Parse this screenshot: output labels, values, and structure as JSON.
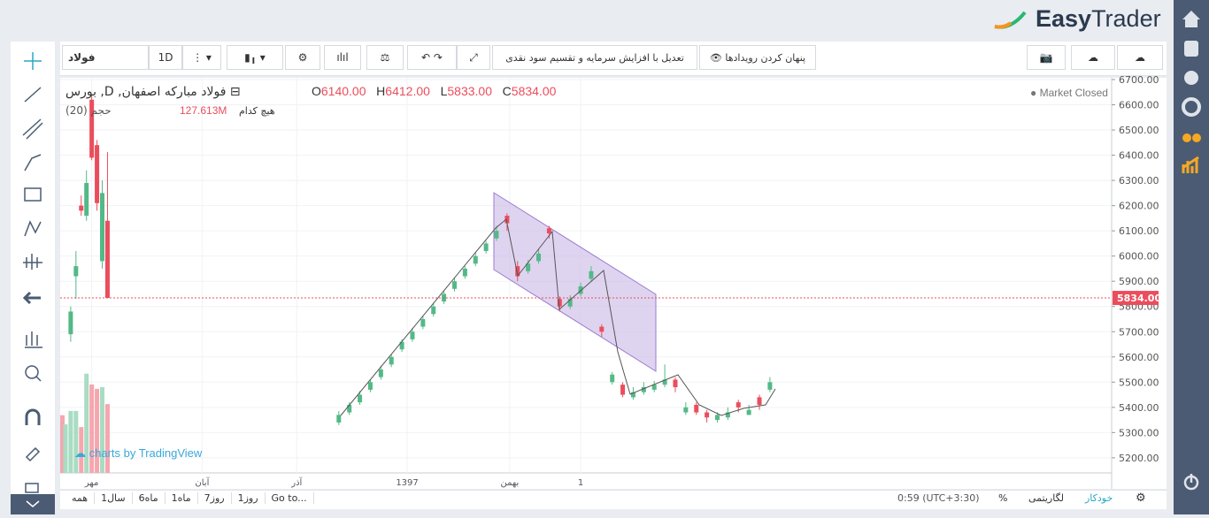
{
  "header": {
    "logo_easy": "Easy",
    "logo_trader": "Trader"
  },
  "toolbar": {
    "symbol": "فولاد",
    "interval": "1D",
    "adjust": "تعدیل با افزایش سرمایه و تقسیم سود نقدی",
    "hide_events": "پنهان کردن رویدادها"
  },
  "legend": {
    "title": "فولاد مبارکه اصفهان, D, بورس",
    "o_label": "O",
    "o": "6140.00",
    "h_label": "H",
    "h": "6412.00",
    "l_label": "L",
    "l": "5833.00",
    "c_label": "C",
    "c": "5834.00",
    "status": "Market Closed",
    "volume_title": "(حجم (20",
    "volume_value": "127.613M",
    "volume_ma": "هیچ کدام"
  },
  "watermark": "charts by TradingView",
  "chart_data": {
    "type": "candlestick",
    "xlim": [
      0,
      200
    ],
    "ylim": [
      5140,
      6707
    ],
    "yticks": [
      {
        "value": 5200,
        "label": "5200.00"
      },
      {
        "value": 5300,
        "label": "5300.00"
      },
      {
        "value": 5400,
        "label": "5400.00"
      },
      {
        "value": 5500,
        "label": "5500.00"
      },
      {
        "value": 5600,
        "label": "5600.00"
      },
      {
        "value": 5700,
        "label": "5700.00"
      },
      {
        "value": 5800,
        "label": "5800.00"
      },
      {
        "value": 5900,
        "label": "5900.00"
      },
      {
        "value": 6000,
        "label": "6000.00"
      },
      {
        "value": 6100,
        "label": "6100.00"
      },
      {
        "value": 6200,
        "label": "6200.00"
      },
      {
        "value": 6300,
        "label": "6300.00"
      },
      {
        "value": 6400,
        "label": "6400.00"
      },
      {
        "value": 6500,
        "label": "6500.00"
      },
      {
        "value": 6600,
        "label": "6600.00"
      },
      {
        "value": 6700,
        "label": "6700.00"
      }
    ],
    "xticks": [
      {
        "value": 6,
        "label": "مهر"
      },
      {
        "value": 27,
        "label": "آبان"
      },
      {
        "value": 45,
        "label": "آذر"
      },
      {
        "value": 66,
        "label": "1397"
      },
      {
        "value": 85.5,
        "label": "بهمن"
      },
      {
        "value": 99,
        "label": "1"
      }
    ],
    "grid": true,
    "up_color": "#53b987",
    "down_color": "#eb4d5c",
    "last": {
      "value": 5834,
      "label": "5834.00"
    },
    "x": [
      2,
      3,
      4,
      5,
      6,
      7,
      8,
      9,
      53,
      55,
      57,
      59,
      61,
      63,
      65,
      67,
      69,
      71,
      73,
      75,
      77,
      79,
      81,
      83,
      85,
      87,
      89,
      91,
      93,
      95,
      97,
      99,
      101,
      103,
      105,
      107,
      109,
      111,
      113,
      115,
      117,
      119,
      121,
      123,
      125,
      127,
      129,
      131,
      133,
      135
    ],
    "open": [
      5690,
      5920,
      6200,
      6160,
      6620,
      6440,
      5980,
      6140,
      5340,
      5380,
      5420,
      5470,
      5520,
      5570,
      5630,
      5670,
      5720,
      5770,
      5820,
      5870,
      5920,
      5970,
      6020,
      6070,
      6160,
      5960,
      5940,
      5980,
      6110,
      5830,
      5800,
      5850,
      5910,
      5720,
      5500,
      5490,
      5440,
      5460,
      5470,
      5490,
      5510,
      5380,
      5410,
      5380,
      5350,
      5360,
      5420,
      5370,
      5440,
      5470
    ],
    "high": [
      5800,
      6020,
      6240,
      6340,
      6640,
      6460,
      6300,
      6412,
      5385,
      5420,
      5465,
      5510,
      5565,
      5610,
      5670,
      5715,
      5760,
      5815,
      5860,
      5915,
      5960,
      6015,
      6060,
      6120,
      6170,
      5980,
      5985,
      6030,
      6120,
      5840,
      5845,
      5895,
      5960,
      5730,
      5540,
      5500,
      5480,
      5500,
      5505,
      5570,
      5520,
      5420,
      5420,
      5390,
      5380,
      5400,
      5430,
      5410,
      5450,
      5520
    ],
    "low": [
      5660,
      5830,
      6160,
      6140,
      6380,
      6180,
      5950,
      5833,
      5330,
      5370,
      5410,
      5460,
      5510,
      5560,
      5620,
      5660,
      5710,
      5760,
      5810,
      5860,
      5910,
      5960,
      6010,
      6060,
      6100,
      5900,
      5930,
      5970,
      6070,
      5780,
      5790,
      5840,
      5900,
      5680,
      5490,
      5440,
      5430,
      5450,
      5460,
      5480,
      5460,
      5370,
      5370,
      5340,
      5340,
      5350,
      5380,
      5370,
      5390,
      5460
    ],
    "close": [
      5780,
      5960,
      6180,
      6290,
      6390,
      6210,
      6250,
      5834,
      5370,
      5410,
      5450,
      5500,
      5550,
      5600,
      5660,
      5700,
      5750,
      5800,
      5850,
      5900,
      5950,
      6000,
      6050,
      6100,
      6130,
      5920,
      5970,
      6010,
      6090,
      5800,
      5830,
      5880,
      5940,
      5700,
      5530,
      5450,
      5460,
      5480,
      5490,
      5510,
      5480,
      5400,
      5380,
      5360,
      5370,
      5380,
      5400,
      5390,
      5410,
      5500
    ],
    "volume": {
      "x": [
        0,
        1,
        2,
        3,
        4,
        5,
        6,
        7,
        8,
        9
      ],
      "values": [
        107,
        90,
        115,
        115,
        85,
        184,
        164,
        156,
        159,
        127.613
      ],
      "colors": [
        "#f5a6ae",
        "#a9dcc3",
        "#a9dcc3",
        "#a9dcc3",
        "#f5a6ae",
        "#a9dcc3",
        "#f5a6ae",
        "#f5a6ae",
        "#a9dcc3",
        "#f5a6ae"
      ],
      "ylim": [
        0,
        200
      ]
    }
  },
  "bottom_bar": {
    "ranges": [
      "همه",
      "1سال",
      "6ماه",
      "1ماه",
      "7روز",
      "1روز"
    ],
    "goto": "Go to...",
    "time": "0:59 (UTC+3:30)",
    "percent": "%",
    "log": "لگاریتمی",
    "auto": "خودکار"
  }
}
